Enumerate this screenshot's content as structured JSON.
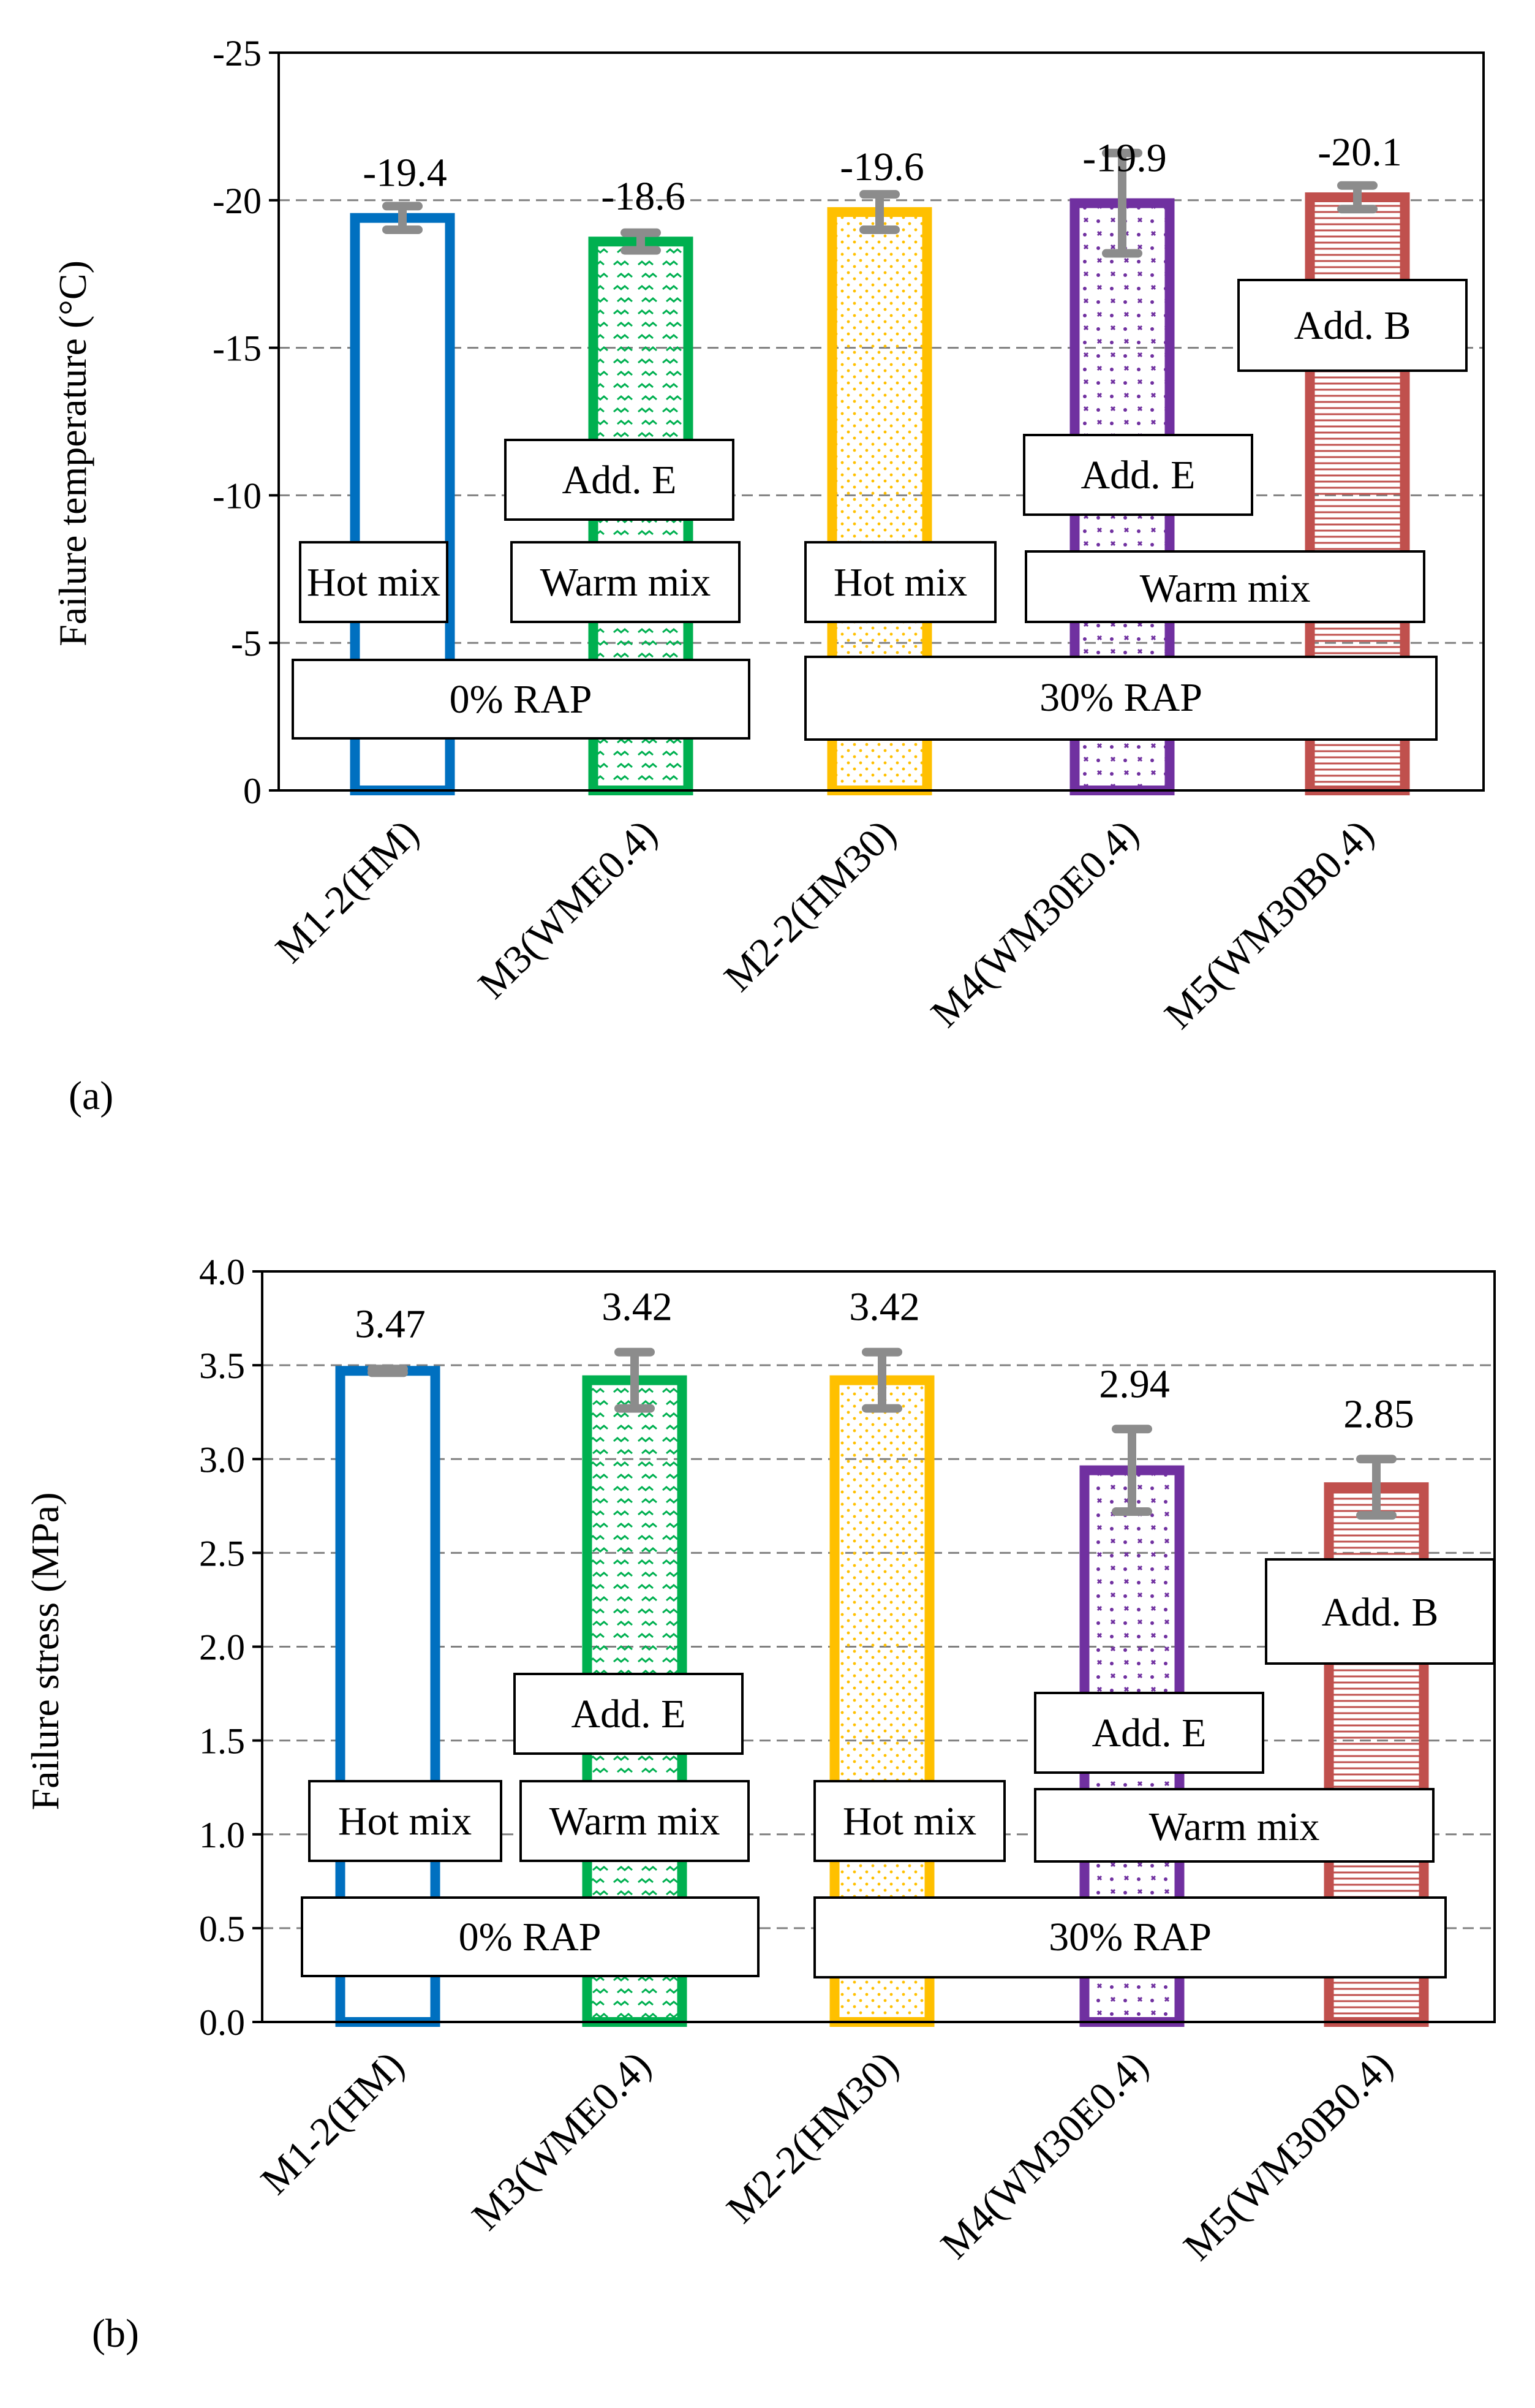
{
  "chart_data": [
    {
      "panel_label": "(a)",
      "type": "bar",
      "ylabel": "Failure temperature (°C)",
      "ylim": [
        0,
        -25
      ],
      "yticks": [
        0,
        -5,
        -10,
        -15,
        -20,
        -25
      ],
      "ytick_labels": [
        "0",
        "-5",
        "-10",
        "-15",
        "-20",
        "-25"
      ],
      "grid": true,
      "categories": [
        "M1-2(HM)",
        "M3(WME0.4)",
        "M2-2(HM30)",
        "M4(WM30E0.4)",
        "M5(WM30B0.4)"
      ],
      "values": [
        -19.4,
        -18.6,
        -19.6,
        -19.9,
        -20.1
      ],
      "value_labels": [
        "-19.4",
        "-18.6",
        "-19.6",
        "-19.9",
        "-20.1"
      ],
      "error": [
        0.4,
        0.3,
        0.6,
        1.7,
        0.4
      ],
      "colors": [
        "#0070C0",
        "#00B050",
        "#FFC000",
        "#7030A0",
        "#C0504D"
      ],
      "patterns": [
        "none",
        "hatch",
        "dots",
        "diamond",
        "horizontal"
      ],
      "annotations": {
        "hot_mix": "Hot mix",
        "warm_mix": "Warm mix",
        "add_e": "Add. E",
        "add_b": "Add. B",
        "rap_0": "0% RAP",
        "rap_30": "30% RAP"
      }
    },
    {
      "panel_label": "(b)",
      "type": "bar",
      "ylabel": "Failure stress (MPa)",
      "ylim": [
        0,
        4
      ],
      "yticks": [
        0,
        0.5,
        1,
        1.5,
        2,
        2.5,
        3,
        3.5,
        4
      ],
      "ytick_labels": [
        "0.0",
        "0.5",
        "1.0",
        "1.5",
        "2.0",
        "2.5",
        "3.0",
        "3.5",
        "4.0"
      ],
      "grid": true,
      "categories": [
        "M1-2(HM)",
        "M3(WME0.4)",
        "M2-2(HM30)",
        "M4(WM30E0.4)",
        "M5(WM30B0.4)"
      ],
      "values": [
        3.47,
        3.42,
        3.42,
        2.94,
        2.85
      ],
      "value_labels": [
        "3.47",
        "3.42",
        "3.42",
        "2.94",
        "2.85"
      ],
      "error": [
        0.01,
        0.15,
        0.15,
        0.22,
        0.15
      ],
      "colors": [
        "#0070C0",
        "#00B050",
        "#FFC000",
        "#7030A0",
        "#C0504D"
      ],
      "patterns": [
        "none",
        "hatch",
        "dots",
        "diamond",
        "horizontal"
      ],
      "annotations": {
        "hot_mix": "Hot mix",
        "warm_mix": "Warm mix",
        "add_e": "Add. E",
        "add_b": "Add. B",
        "rap_0": "0% RAP",
        "rap_30": "30% RAP"
      }
    }
  ]
}
